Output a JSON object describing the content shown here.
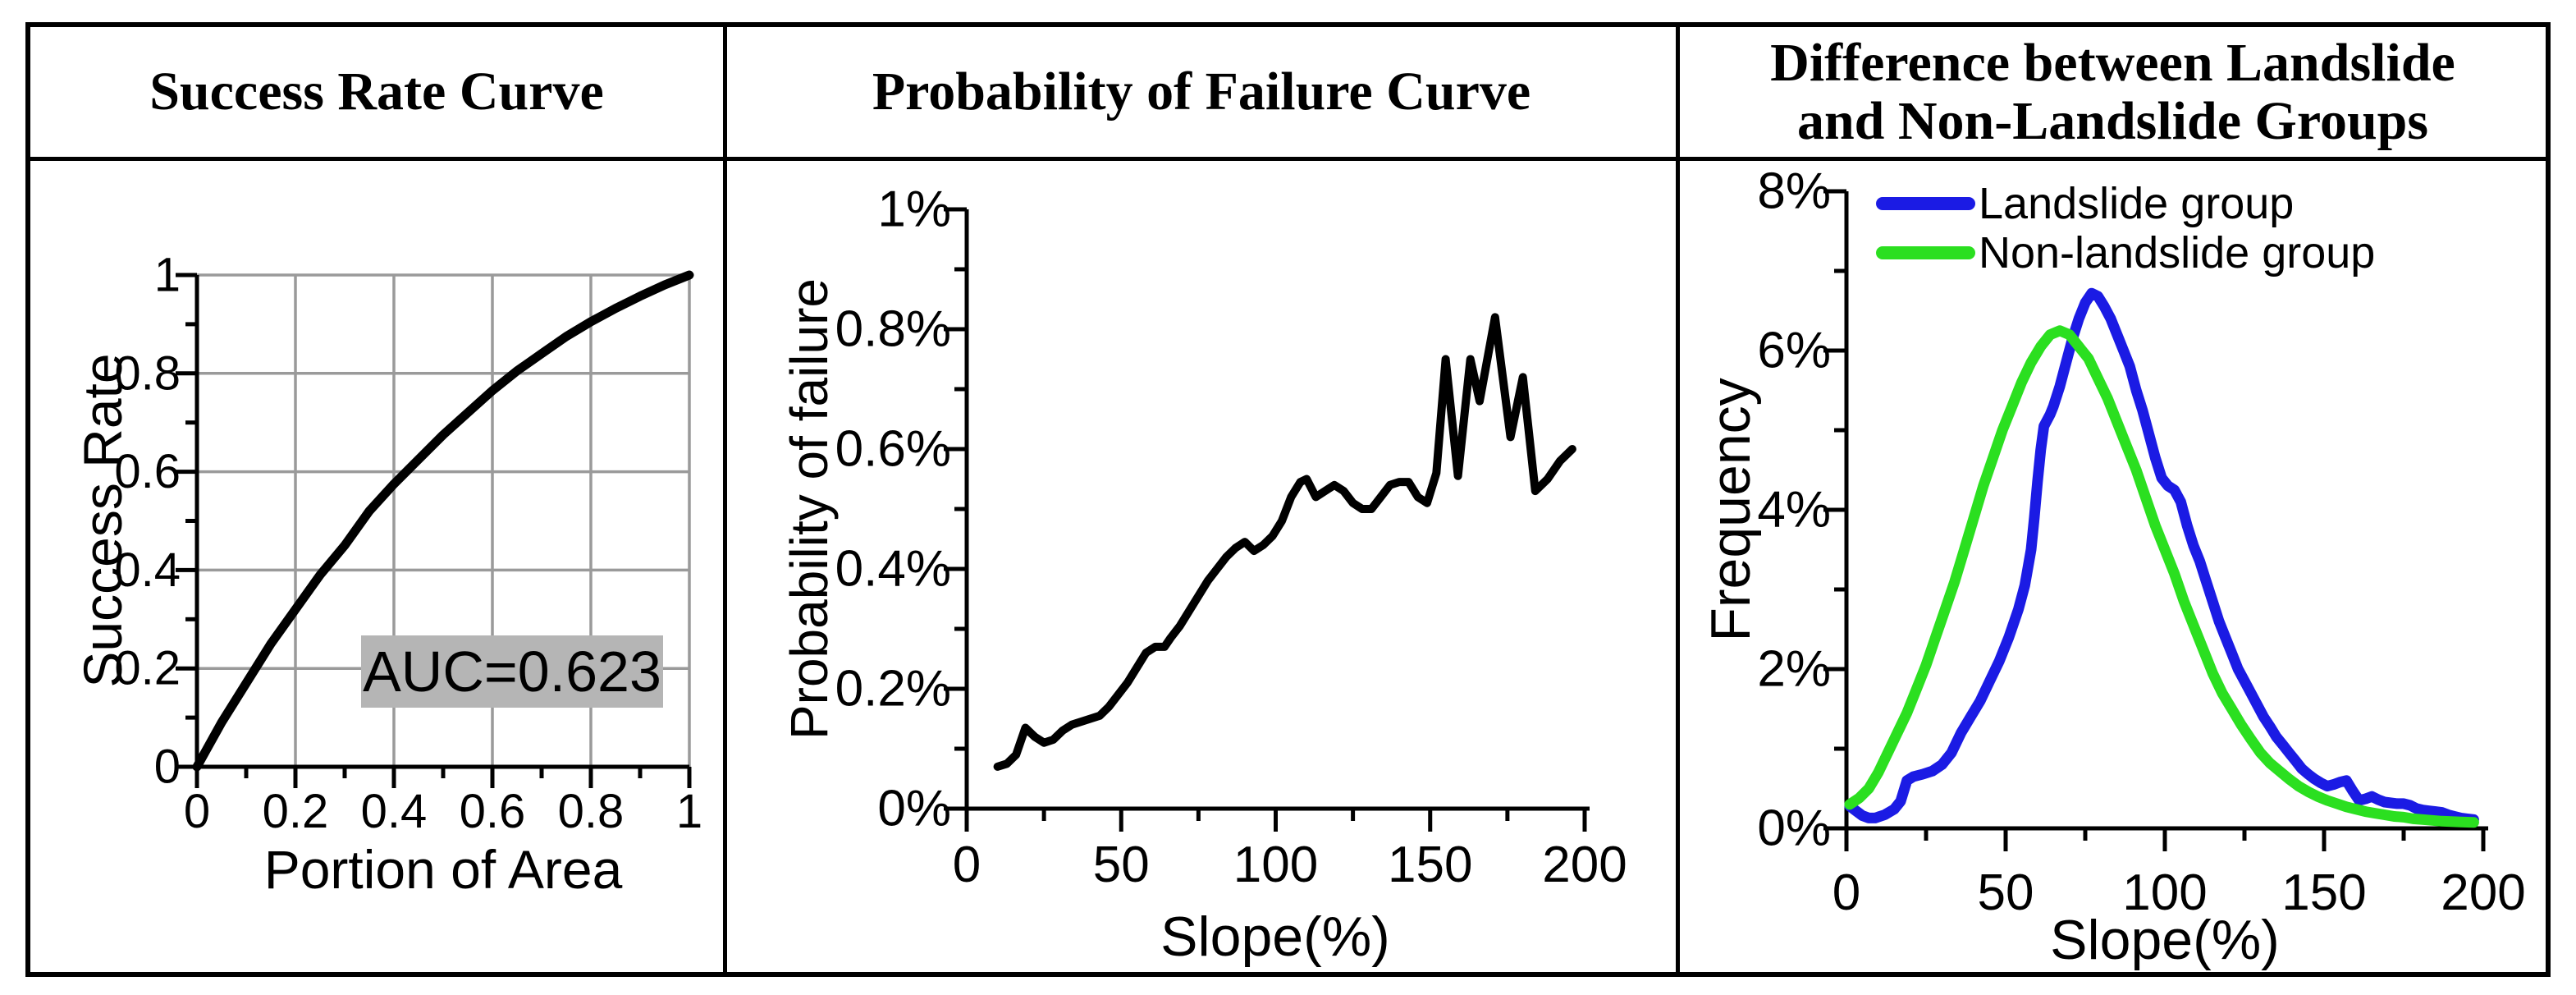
{
  "figure": {
    "panels": [
      {
        "title_line1": "Success Rate Curve",
        "title_line2": ""
      },
      {
        "title_line1": "Probability of Failure Curve",
        "title_line2": ""
      },
      {
        "title_line1": "Difference between Landslide",
        "title_line2": "and Non-Landslide Groups"
      }
    ]
  },
  "colors": {
    "curve_black": "#000000",
    "landslide_blue": "#1b1be4",
    "non_landslide_green": "#2bdf20",
    "grid_gray": "#9a9a9a",
    "auc_box_bg": "#b5b5b5",
    "border_black": "#000000"
  },
  "chart_data": [
    {
      "type": "line",
      "title": "Success Rate Curve",
      "xlabel": "Portion of Area",
      "ylabel": "Success Rate",
      "xlim": [
        0,
        1
      ],
      "ylim": [
        0,
        1
      ],
      "grid": true,
      "x_ticks": [
        0,
        0.2,
        0.4,
        0.6,
        0.8,
        1
      ],
      "x_tick_labels": [
        "0",
        "0.2",
        "0.4",
        "0.6",
        "0.8",
        "1"
      ],
      "x_minor_step": 0.1,
      "y_ticks": [
        0,
        0.2,
        0.4,
        0.6,
        0.8,
        1
      ],
      "y_tick_labels": [
        "0",
        "0.2",
        "0.4",
        "0.6",
        "0.8",
        "1"
      ],
      "y_minor_step": 0.1,
      "annotation": {
        "text": "AUC=0.623",
        "auc_value": 0.623
      },
      "series": [
        {
          "name": "Success rate curve",
          "color": "#000000",
          "points": [
            [
              0,
              0
            ],
            [
              0.05,
              0.09
            ],
            [
              0.1,
              0.17
            ],
            [
              0.15,
              0.25
            ],
            [
              0.2,
              0.32
            ],
            [
              0.25,
              0.39
            ],
            [
              0.3,
              0.45
            ],
            [
              0.35,
              0.52
            ],
            [
              0.4,
              0.575
            ],
            [
              0.45,
              0.625
            ],
            [
              0.5,
              0.675
            ],
            [
              0.55,
              0.72
            ],
            [
              0.6,
              0.765
            ],
            [
              0.65,
              0.805
            ],
            [
              0.7,
              0.84
            ],
            [
              0.75,
              0.875
            ],
            [
              0.8,
              0.905
            ],
            [
              0.85,
              0.932
            ],
            [
              0.9,
              0.957
            ],
            [
              0.95,
              0.98
            ],
            [
              1,
              1
            ]
          ]
        }
      ]
    },
    {
      "type": "line",
      "title": "Probability of Failure Curve",
      "xlabel": "Slope(%)",
      "ylabel": "Probability of failure",
      "xlim": [
        0,
        200
      ],
      "ylim": [
        0,
        1
      ],
      "grid": false,
      "x_ticks": [
        0,
        50,
        100,
        150,
        200
      ],
      "x_tick_labels": [
        "0",
        "50",
        "100",
        "150",
        "200"
      ],
      "x_minor_step": 25,
      "y_ticks": [
        0,
        0.2,
        0.4,
        0.6,
        0.8,
        1
      ],
      "y_tick_labels": [
        "0%",
        "0.2%",
        "0.4%",
        "0.6%",
        "0.8%",
        "1%"
      ],
      "y_minor_step": 0.1,
      "series": [
        {
          "name": "Probability of failure",
          "color": "#000000",
          "points": [
            [
              10,
              0.07
            ],
            [
              13,
              0.075
            ],
            [
              16,
              0.09
            ],
            [
              19,
              0.135
            ],
            [
              22,
              0.12
            ],
            [
              25,
              0.11
            ],
            [
              28,
              0.115
            ],
            [
              31,
              0.13
            ],
            [
              34,
              0.14
            ],
            [
              37,
              0.145
            ],
            [
              40,
              0.15
            ],
            [
              43,
              0.155
            ],
            [
              46,
              0.17
            ],
            [
              49,
              0.19
            ],
            [
              52,
              0.21
            ],
            [
              55,
              0.235
            ],
            [
              58,
              0.26
            ],
            [
              61,
              0.27
            ],
            [
              64,
              0.27
            ],
            [
              66,
              0.285
            ],
            [
              69,
              0.305
            ],
            [
              72,
              0.33
            ],
            [
              75,
              0.355
            ],
            [
              78,
              0.38
            ],
            [
              81,
              0.4
            ],
            [
              84,
              0.42
            ],
            [
              87,
              0.435
            ],
            [
              90,
              0.445
            ],
            [
              93,
              0.43
            ],
            [
              96,
              0.44
            ],
            [
              99,
              0.455
            ],
            [
              102,
              0.48
            ],
            [
              105,
              0.52
            ],
            [
              108,
              0.545
            ],
            [
              110,
              0.55
            ],
            [
              113,
              0.52
            ],
            [
              116,
              0.53
            ],
            [
              119,
              0.54
            ],
            [
              122,
              0.53
            ],
            [
              125,
              0.51
            ],
            [
              128,
              0.5
            ],
            [
              131,
              0.5
            ],
            [
              134,
              0.52
            ],
            [
              137,
              0.54
            ],
            [
              140,
              0.545
            ],
            [
              143,
              0.545
            ],
            [
              146,
              0.52
            ],
            [
              149,
              0.51
            ],
            [
              152,
              0.56
            ],
            [
              155,
              0.75
            ],
            [
              159,
              0.555
            ],
            [
              163,
              0.75
            ],
            [
              166,
              0.68
            ],
            [
              171,
              0.82
            ],
            [
              176,
              0.62
            ],
            [
              180,
              0.72
            ],
            [
              184,
              0.53
            ],
            [
              188,
              0.55
            ],
            [
              192,
              0.58
            ],
            [
              196,
              0.6
            ]
          ]
        }
      ]
    },
    {
      "type": "line",
      "title": "Difference between Landslide and Non-Landslide Groups",
      "xlabel": "Slope(%)",
      "ylabel": "Frequency",
      "xlim": [
        0,
        200
      ],
      "ylim": [
        0,
        8
      ],
      "grid": false,
      "legend_position": "top-left-inside",
      "x_ticks": [
        0,
        50,
        100,
        150,
        200
      ],
      "x_tick_labels": [
        "0",
        "50",
        "100",
        "150",
        "200"
      ],
      "x_minor_step": 25,
      "y_ticks": [
        0,
        2,
        4,
        6,
        8
      ],
      "y_tick_labels": [
        "0%",
        "2%",
        "4%",
        "6%",
        "8%"
      ],
      "y_minor_step": 1,
      "series": [
        {
          "name": "Landslide group",
          "color": "#1b1be4",
          "points": [
            [
              1,
              0.28
            ],
            [
              3,
              0.22
            ],
            [
              5,
              0.16
            ],
            [
              7,
              0.13
            ],
            [
              9,
              0.13
            ],
            [
              12,
              0.17
            ],
            [
              15,
              0.24
            ],
            [
              17,
              0.34
            ],
            [
              19,
              0.6
            ],
            [
              21,
              0.65
            ],
            [
              24,
              0.68
            ],
            [
              27,
              0.72
            ],
            [
              30,
              0.8
            ],
            [
              33,
              0.95
            ],
            [
              36,
              1.2
            ],
            [
              39,
              1.4
            ],
            [
              42,
              1.6
            ],
            [
              45,
              1.85
            ],
            [
              48,
              2.1
            ],
            [
              51,
              2.4
            ],
            [
              54,
              2.75
            ],
            [
              56,
              3.05
            ],
            [
              58,
              3.5
            ],
            [
              59,
              3.9
            ],
            [
              60,
              4.35
            ],
            [
              61,
              4.75
            ],
            [
              62,
              5.05
            ],
            [
              64,
              5.2
            ],
            [
              65,
              5.3
            ],
            [
              67,
              5.55
            ],
            [
              69,
              5.85
            ],
            [
              71,
              6.15
            ],
            [
              73,
              6.4
            ],
            [
              75,
              6.6
            ],
            [
              77,
              6.72
            ],
            [
              79,
              6.68
            ],
            [
              81,
              6.55
            ],
            [
              83,
              6.4
            ],
            [
              85,
              6.2
            ],
            [
              87,
              6.0
            ],
            [
              89,
              5.8
            ],
            [
              91,
              5.5
            ],
            [
              93,
              5.25
            ],
            [
              95,
              4.95
            ],
            [
              97,
              4.65
            ],
            [
              99,
              4.4
            ],
            [
              101,
              4.3
            ],
            [
              103,
              4.25
            ],
            [
              105,
              4.1
            ],
            [
              107,
              3.8
            ],
            [
              109,
              3.55
            ],
            [
              111,
              3.35
            ],
            [
              113,
              3.1
            ],
            [
              115,
              2.85
            ],
            [
              117,
              2.6
            ],
            [
              119,
              2.4
            ],
            [
              121,
              2.2
            ],
            [
              123,
              2.0
            ],
            [
              125,
              1.85
            ],
            [
              127,
              1.7
            ],
            [
              129,
              1.55
            ],
            [
              131,
              1.4
            ],
            [
              133,
              1.28
            ],
            [
              135,
              1.15
            ],
            [
              137,
              1.05
            ],
            [
              139,
              0.95
            ],
            [
              141,
              0.85
            ],
            [
              143,
              0.75
            ],
            [
              145,
              0.68
            ],
            [
              147,
              0.62
            ],
            [
              149,
              0.57
            ],
            [
              151,
              0.53
            ],
            [
              153,
              0.55
            ],
            [
              155,
              0.58
            ],
            [
              157,
              0.6
            ],
            [
              159,
              0.47
            ],
            [
              161,
              0.35
            ],
            [
              163,
              0.37
            ],
            [
              165,
              0.4
            ],
            [
              167,
              0.36
            ],
            [
              169,
              0.33
            ],
            [
              171,
              0.32
            ],
            [
              173,
              0.31
            ],
            [
              175,
              0.31
            ],
            [
              177,
              0.29
            ],
            [
              179,
              0.25
            ],
            [
              181,
              0.23
            ],
            [
              183,
              0.22
            ],
            [
              185,
              0.21
            ],
            [
              187,
              0.2
            ],
            [
              189,
              0.17
            ],
            [
              191,
              0.15
            ],
            [
              193,
              0.13
            ],
            [
              195,
              0.12
            ],
            [
              197,
              0.11
            ]
          ]
        },
        {
          "name": "Non-landslide group",
          "color": "#2bdf20",
          "points": [
            [
              1,
              0.3
            ],
            [
              4,
              0.38
            ],
            [
              7,
              0.5
            ],
            [
              10,
              0.7
            ],
            [
              13,
              0.95
            ],
            [
              16,
              1.2
            ],
            [
              19,
              1.45
            ],
            [
              22,
              1.75
            ],
            [
              25,
              2.05
            ],
            [
              28,
              2.4
            ],
            [
              31,
              2.75
            ],
            [
              34,
              3.1
            ],
            [
              37,
              3.5
            ],
            [
              40,
              3.9
            ],
            [
              43,
              4.3
            ],
            [
              46,
              4.65
            ],
            [
              49,
              5.0
            ],
            [
              52,
              5.3
            ],
            [
              55,
              5.6
            ],
            [
              58,
              5.85
            ],
            [
              61,
              6.05
            ],
            [
              64,
              6.2
            ],
            [
              67,
              6.25
            ],
            [
              70,
              6.2
            ],
            [
              73,
              6.05
            ],
            [
              76,
              5.9
            ],
            [
              79,
              5.65
            ],
            [
              82,
              5.4
            ],
            [
              85,
              5.1
            ],
            [
              88,
              4.8
            ],
            [
              91,
              4.5
            ],
            [
              94,
              4.15
            ],
            [
              97,
              3.8
            ],
            [
              100,
              3.5
            ],
            [
              103,
              3.2
            ],
            [
              106,
              2.85
            ],
            [
              109,
              2.55
            ],
            [
              112,
              2.25
            ],
            [
              115,
              1.95
            ],
            [
              118,
              1.7
            ],
            [
              121,
              1.5
            ],
            [
              124,
              1.3
            ],
            [
              127,
              1.12
            ],
            [
              130,
              0.95
            ],
            [
              133,
              0.82
            ],
            [
              136,
              0.72
            ],
            [
              139,
              0.62
            ],
            [
              142,
              0.53
            ],
            [
              145,
              0.46
            ],
            [
              148,
              0.4
            ],
            [
              151,
              0.35
            ],
            [
              154,
              0.31
            ],
            [
              157,
              0.27
            ],
            [
              160,
              0.24
            ],
            [
              163,
              0.21
            ],
            [
              166,
              0.19
            ],
            [
              169,
              0.17
            ],
            [
              172,
              0.15
            ],
            [
              175,
              0.14
            ],
            [
              178,
              0.12
            ],
            [
              181,
              0.11
            ],
            [
              184,
              0.1
            ],
            [
              187,
              0.09
            ],
            [
              190,
              0.085
            ],
            [
              193,
              0.08
            ],
            [
              197,
              0.075
            ]
          ]
        }
      ]
    }
  ]
}
